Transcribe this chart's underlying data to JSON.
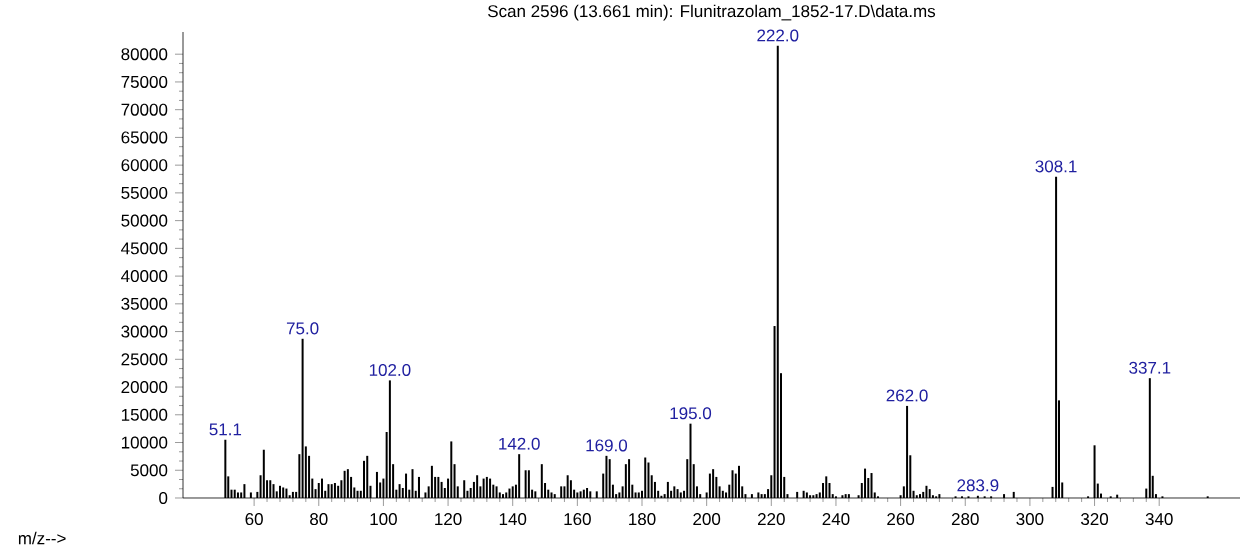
{
  "chart_data": {
    "type": "bar",
    "title": "Scan 2596 (13.661 min): Flunitrazolam_1852-17.D\\data.ms",
    "xlabel": "m/z-->",
    "x": [
      51.1,
      52,
      53,
      54,
      55,
      56,
      57,
      59,
      61,
      62,
      63,
      64,
      65,
      66,
      67,
      68,
      69,
      70,
      71,
      72,
      73,
      74,
      75.0,
      76,
      77,
      78,
      79,
      80,
      81,
      82,
      83,
      84,
      85,
      86,
      87,
      88,
      89,
      90,
      91,
      92,
      93,
      94,
      95,
      96,
      98,
      99,
      100,
      101,
      102.0,
      103,
      104,
      105,
      106,
      107,
      108,
      109,
      110,
      111,
      113,
      114,
      115,
      116,
      117,
      118,
      119,
      120,
      121,
      122,
      123,
      125,
      126,
      127,
      128,
      129,
      130,
      131,
      132,
      133,
      134,
      135,
      136,
      137,
      138,
      139,
      140,
      141,
      142.0,
      144,
      145,
      146,
      147,
      149,
      150,
      151,
      152,
      153,
      155,
      156,
      157,
      158,
      159,
      160,
      161,
      162,
      163,
      164,
      166,
      168,
      169.0,
      170,
      171,
      172,
      173,
      174,
      175,
      176,
      177,
      178,
      179,
      180,
      181,
      182,
      183,
      184,
      185,
      186,
      187,
      188,
      189,
      190,
      191,
      192,
      193,
      194,
      195.0,
      196,
      197,
      198,
      200,
      201,
      202,
      203,
      204,
      205,
      206,
      207,
      208,
      209,
      210,
      211,
      212,
      214,
      216,
      217,
      218,
      219,
      220,
      221,
      222.0,
      223,
      224,
      225,
      228,
      230,
      231,
      232,
      233,
      234,
      235,
      236,
      237,
      238,
      239,
      240,
      242,
      243,
      244,
      247,
      248,
      249,
      250,
      251,
      252,
      253,
      260,
      261,
      262.0,
      263,
      264,
      265,
      266,
      267,
      268,
      269,
      270,
      271,
      272,
      277,
      279,
      281,
      283.9,
      286,
      288,
      292,
      295,
      307,
      308.1,
      309,
      310,
      318,
      320,
      321,
      322,
      325,
      327,
      336,
      337.1,
      338,
      339,
      341,
      355
    ],
    "values": [
      10500,
      3900,
      1500,
      1500,
      1000,
      1000,
      2500,
      1000,
      1100,
      4100,
      8700,
      3200,
      3200,
      2500,
      1200,
      2200,
      1900,
      1700,
      500,
      1100,
      1100,
      7900,
      28700,
      9300,
      7600,
      3500,
      1600,
      2700,
      3500,
      1300,
      2500,
      2500,
      2700,
      2200,
      3200,
      4900,
      5200,
      3800,
      1900,
      1300,
      1300,
      6700,
      7600,
      2200,
      4700,
      2800,
      3500,
      11900,
      21200,
      6100,
      1500,
      2500,
      1800,
      4400,
      1500,
      5200,
      1300,
      3800,
      1000,
      2100,
      5800,
      3800,
      3800,
      2900,
      1800,
      3500,
      10200,
      6100,
      2100,
      3200,
      1300,
      1800,
      2900,
      4100,
      2100,
      3500,
      3800,
      3500,
      2400,
      2100,
      1000,
      700,
      1000,
      1700,
      2100,
      2400,
      7900,
      5000,
      5000,
      1500,
      1200,
      6100,
      2700,
      1500,
      1000,
      700,
      2100,
      2100,
      4100,
      3200,
      1500,
      1000,
      1200,
      1500,
      1800,
      1200,
      1200,
      4400,
      7600,
      7000,
      2400,
      700,
      1000,
      2100,
      6100,
      7000,
      2400,
      1000,
      1000,
      1300,
      7300,
      6400,
      4100,
      2900,
      1300,
      400,
      700,
      2900,
      1300,
      2100,
      1600,
      1000,
      1300,
      7000,
      13400,
      6100,
      2100,
      700,
      1000,
      4400,
      5200,
      3800,
      2100,
      1300,
      1000,
      2400,
      5000,
      4400,
      5800,
      2100,
      700,
      700,
      1000,
      700,
      700,
      1600,
      4100,
      31000,
      81500,
      22500,
      3800,
      700,
      1100,
      1300,
      1000,
      500,
      500,
      700,
      1000,
      2700,
      3900,
      2700,
      700,
      300,
      500,
      700,
      700,
      500,
      2700,
      5300,
      3600,
      4500,
      1000,
      300,
      500,
      2100,
      16600,
      7700,
      1300,
      500,
      700,
      1100,
      2200,
      1600,
      500,
      300,
      700,
      300,
      300,
      300,
      400,
      300,
      300,
      700,
      1100,
      2000,
      57900,
      17600,
      2800,
      300,
      9500,
      2600,
      800,
      300,
      600,
      1700,
      21600,
      4000,
      700,
      300,
      300
    ],
    "color": "#000000",
    "xlim": [
      38,
      365
    ],
    "ylim": [
      0,
      84000
    ],
    "xticks": [
      60,
      80,
      100,
      120,
      140,
      160,
      180,
      200,
      220,
      240,
      260,
      280,
      300,
      320,
      340
    ],
    "yticks": [
      0,
      5000,
      10000,
      15000,
      20000,
      25000,
      30000,
      35000,
      40000,
      45000,
      50000,
      55000,
      60000,
      65000,
      70000,
      75000,
      80000
    ],
    "annotations": [
      {
        "text": "51.1",
        "x": 51.1,
        "y": 10500
      },
      {
        "text": "75.0",
        "x": 75.0,
        "y": 28700
      },
      {
        "text": "102.0",
        "x": 102.0,
        "y": 21200
      },
      {
        "text": "142.0",
        "x": 142.0,
        "y": 7900
      },
      {
        "text": "169.0",
        "x": 169.0,
        "y": 7600
      },
      {
        "text": "195.0",
        "x": 195.0,
        "y": 13400
      },
      {
        "text": "222.0",
        "x": 222.0,
        "y": 81500
      },
      {
        "text": "262.0",
        "x": 262.0,
        "y": 16600
      },
      {
        "text": "283.9",
        "x": 283.9,
        "y": 400
      },
      {
        "text": "308.1",
        "x": 308.1,
        "y": 57900
      },
      {
        "text": "337.1",
        "x": 337.1,
        "y": 21600
      }
    ]
  }
}
